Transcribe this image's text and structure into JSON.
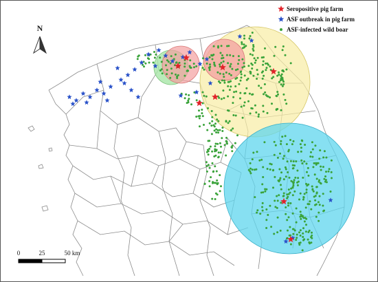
{
  "map": {
    "colors": {
      "star_red": "#e2232a",
      "star_blue": "#2a52c9",
      "boar_green": "#3aa33a",
      "circle_red": "#f3a0a0",
      "circle_green": "#a8e6a8",
      "circle_yellow": "#f8eda4",
      "circle_blue": "#5fd6ee",
      "orange_overlap": "#f0b07a"
    }
  },
  "north_arrow": {
    "label": "N",
    "icon": "north-arrow-icon"
  },
  "legend": {
    "items": [
      {
        "label": "Seropositive pig farm",
        "icon": "red-star-icon",
        "color": "#e2232a"
      },
      {
        "label": "ASF outbreak in pig farm",
        "icon": "blue-star-icon",
        "color": "#2a52c9"
      },
      {
        "label": "ASF-infected wild boar",
        "icon": "green-dot-icon",
        "color": "#3aa33a"
      }
    ]
  },
  "scale_bar": {
    "tick0": "0",
    "tick1": "25",
    "tick2": "50 km"
  }
}
